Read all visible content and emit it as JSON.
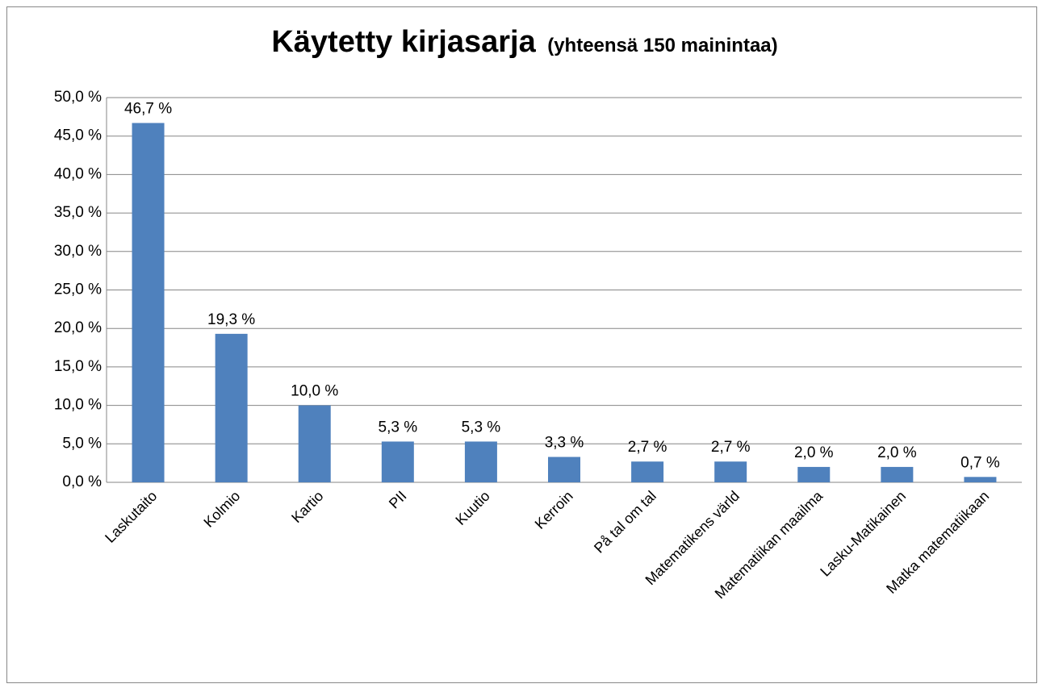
{
  "chart_data": {
    "type": "bar",
    "title": "Käytetty kirjasarja",
    "subtitle": "(yhteensä 150 mainintaa)",
    "categories": [
      "Laskutaito",
      "Kolmio",
      "Kartio",
      "PII",
      "Kuutio",
      "Kerroin",
      "På tal om tal",
      "Matematikens värld",
      "Matematiikan maailma",
      "Lasku-Matikainen",
      "Matka matematiikaan"
    ],
    "values": [
      46.7,
      19.3,
      10.0,
      5.3,
      5.3,
      3.3,
      2.7,
      2.7,
      2.0,
      2.0,
      0.7
    ],
    "value_labels": [
      "46,7 %",
      "19,3 %",
      "10,0 %",
      "5,3 %",
      "5,3 %",
      "3,3 %",
      "2,7 %",
      "2,7 %",
      "2,0 %",
      "2,0 %",
      "0,7 %"
    ],
    "color": "#4f81bd",
    "ylim": [
      0,
      50
    ],
    "yticks": [
      {
        "value": 0,
        "label": "0,0 %"
      },
      {
        "value": 5,
        "label": "5,0 %"
      },
      {
        "value": 10,
        "label": "10,0 %"
      },
      {
        "value": 15,
        "label": "15,0 %"
      },
      {
        "value": 20,
        "label": "20,0 %"
      },
      {
        "value": 25,
        "label": "25,0 %"
      },
      {
        "value": 30,
        "label": "30,0 %"
      },
      {
        "value": 35,
        "label": "35,0 %"
      },
      {
        "value": 40,
        "label": "40,0 %"
      },
      {
        "value": 45,
        "label": "45,0 %"
      },
      {
        "value": 50,
        "label": "50,0 %"
      }
    ],
    "grid": true
  }
}
